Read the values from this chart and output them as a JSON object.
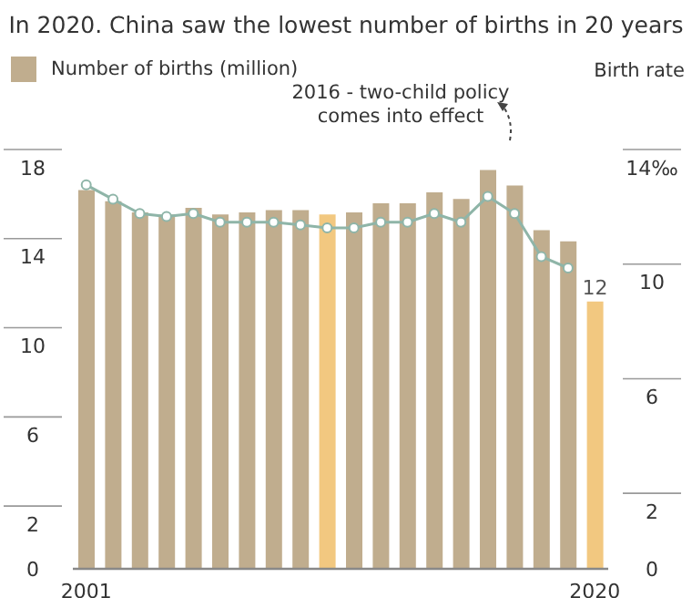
{
  "chart_data": {
    "type": "bar",
    "title": "In 2020. China saw the lowest number of births in 20 years",
    "y2label": "Birth rate",
    "categories": [
      "2001",
      null,
      null,
      null,
      null,
      null,
      null,
      null,
      null,
      null,
      null,
      null,
      null,
      null,
      null,
      null,
      null,
      null,
      null,
      "2020"
    ],
    "series": [
      {
        "name": "Number of births (million)",
        "color": "#c0ad8e",
        "colors": [
          "#c0ad8e",
          "#c0ad8e",
          "#c0ad8e",
          "#c0ad8e",
          "#c0ad8e",
          "#c0ad8e",
          "#c0ad8e",
          "#c0ad8e",
          "#c0ad8e",
          "#f2c880",
          "#c0ad8e",
          "#c0ad8e",
          "#c0ad8e",
          "#c0ad8e",
          "#c0ad8e",
          "#c0ad8e",
          "#c0ad8e",
          "#c0ad8e",
          "#c0ad8e",
          "#f2c880"
        ],
        "values": [
          17.0,
          16.5,
          16.0,
          15.9,
          16.2,
          15.9,
          16.0,
          16.1,
          16.1,
          15.9,
          16.0,
          16.4,
          16.4,
          16.9,
          16.6,
          17.9,
          17.2,
          15.2,
          14.7,
          12.0
        ],
        "value_labels": [
          null,
          null,
          null,
          null,
          null,
          null,
          null,
          null,
          null,
          null,
          null,
          null,
          null,
          null,
          null,
          null,
          null,
          null,
          null,
          "12"
        ]
      },
      {
        "type": "line",
        "axis": "y2",
        "color": "#8fb5a8",
        "values": [
          13.4,
          12.9,
          12.4,
          12.3,
          12.4,
          12.1,
          12.1,
          12.1,
          12.0,
          11.9,
          11.9,
          12.1,
          12.1,
          12.4,
          12.1,
          13.0,
          12.4,
          10.9,
          10.5,
          null
        ]
      }
    ],
    "ylim": [
      0,
      18
    ],
    "yticks": [
      0,
      2,
      6,
      10,
      14,
      18
    ],
    "y2lim": [
      0,
      14
    ],
    "y2ticks": [
      0,
      2,
      6,
      10,
      {
        "value": 14,
        "label": "14‰"
      }
    ],
    "annotations": [
      "2016 - two-child policy comes into effect"
    ],
    "legend": "top left",
    "marker": "circle"
  }
}
